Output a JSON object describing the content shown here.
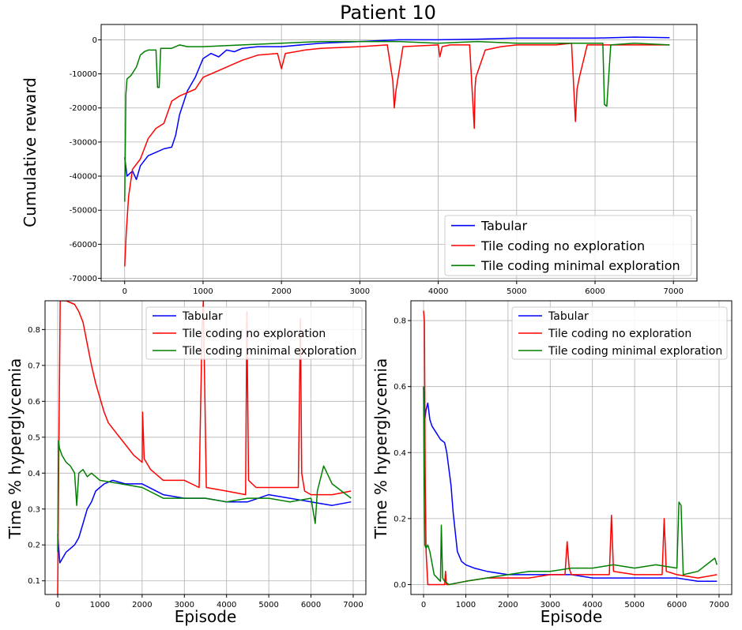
{
  "figure": {
    "title": "Patient 10",
    "colors": {
      "Tabular": "#0000ff",
      "Tile coding no exploration": "#ff0000",
      "Tile coding minimal exploration": "#008000"
    }
  },
  "chart_data": [
    {
      "type": "line",
      "title": "Patient 10",
      "xlabel": "",
      "ylabel": "Cumulative reward",
      "xlim": [
        -300,
        7300
      ],
      "ylim": [
        -70800,
        4500
      ],
      "xticks": [
        0,
        1000,
        2000,
        3000,
        4000,
        5000,
        6000,
        7000
      ],
      "yticks": [
        0,
        -10000,
        -20000,
        -30000,
        -40000,
        -50000,
        -60000,
        -70000
      ],
      "grid": true,
      "legend": "lower-right",
      "series": [
        {
          "name": "Tabular",
          "color": "#0000ff",
          "x": [
            0,
            30,
            100,
            150,
            200,
            300,
            400,
            500,
            600,
            650,
            700,
            800,
            900,
            1000,
            1100,
            1200,
            1300,
            1400,
            1500,
            1700,
            2000,
            2500,
            3000,
            3500,
            4000,
            4500,
            5000,
            5500,
            6000,
            6500,
            6950
          ],
          "y": [
            -34500,
            -40000,
            -38500,
            -41000,
            -37000,
            -34000,
            -33000,
            -32000,
            -31500,
            -28000,
            -22000,
            -15000,
            -11000,
            -5500,
            -4000,
            -5000,
            -3000,
            -3500,
            -2500,
            -2000,
            -2000,
            -1000,
            -500,
            0,
            0,
            200,
            500,
            500,
            500,
            800,
            600
          ]
        },
        {
          "name": "Tile coding no exploration",
          "color": "#ff0000",
          "x": [
            0,
            20,
            50,
            100,
            200,
            300,
            400,
            500,
            600,
            700,
            800,
            900,
            1000,
            1200,
            1500,
            1700,
            1950,
            2000,
            2050,
            2300,
            2500,
            3000,
            3350,
            3420,
            3440,
            3460,
            3550,
            4000,
            4020,
            4050,
            4150,
            4400,
            4460,
            4470,
            4480,
            4600,
            4800,
            5000,
            5500,
            5700,
            5750,
            5770,
            5800,
            5900,
            6500,
            6950
          ],
          "y": [
            -66500,
            -57000,
            -46000,
            -38000,
            -35000,
            -29000,
            -26000,
            -24500,
            -18000,
            -16500,
            -15500,
            -14500,
            -11000,
            -9000,
            -6000,
            -4500,
            -4000,
            -8500,
            -4000,
            -3000,
            -2500,
            -2000,
            -1500,
            -12000,
            -20000,
            -15000,
            -2000,
            -1500,
            -5000,
            -2000,
            -1500,
            -1500,
            -26000,
            -14000,
            -11000,
            -3000,
            -2000,
            -1500,
            -1500,
            -1000,
            -24000,
            -14500,
            -11000,
            -1500,
            -1500,
            -1500
          ]
        },
        {
          "name": "Tile coding minimal exploration",
          "color": "#008000",
          "x": [
            0,
            15,
            30,
            80,
            150,
            200,
            250,
            300,
            400,
            420,
            440,
            460,
            500,
            600,
            700,
            800,
            1000,
            1500,
            2000,
            2500,
            3000,
            3500,
            4000,
            4500,
            5000,
            5500,
            6000,
            6100,
            6120,
            6150,
            6200,
            6500,
            6950
          ],
          "y": [
            -47500,
            -16000,
            -11500,
            -10500,
            -8000,
            -4500,
            -3500,
            -3000,
            -3000,
            -14000,
            -14000,
            -2500,
            -2500,
            -2500,
            -1500,
            -2000,
            -2000,
            -1500,
            -1000,
            -500,
            -500,
            -500,
            -1000,
            -500,
            -1000,
            -1000,
            -1000,
            -1000,
            -19000,
            -19500,
            -1500,
            -1000,
            -1500
          ]
        }
      ]
    },
    {
      "type": "line",
      "title": "",
      "xlabel": "Episode",
      "ylabel": "Time % hyperglycemia",
      "xlim": [
        -300,
        7300
      ],
      "ylim": [
        0.062,
        0.88
      ],
      "xticks": [
        0,
        1000,
        2000,
        3000,
        4000,
        5000,
        6000,
        7000
      ],
      "yticks": [
        0.1,
        0.2,
        0.3,
        0.4,
        0.5,
        0.6,
        0.7,
        0.8
      ],
      "grid": true,
      "legend": "top-right",
      "series": [
        {
          "name": "Tabular",
          "color": "#0000ff",
          "x": [
            0,
            50,
            100,
            200,
            300,
            400,
            500,
            600,
            700,
            800,
            900,
            1000,
            1100,
            1300,
            1600,
            2000,
            2500,
            3000,
            3500,
            4000,
            4500,
            5000,
            5500,
            6000,
            6500,
            6950
          ],
          "y": [
            0.23,
            0.15,
            0.16,
            0.18,
            0.19,
            0.2,
            0.22,
            0.26,
            0.3,
            0.32,
            0.35,
            0.36,
            0.37,
            0.38,
            0.37,
            0.37,
            0.34,
            0.33,
            0.33,
            0.32,
            0.32,
            0.34,
            0.33,
            0.32,
            0.31,
            0.32
          ]
        },
        {
          "name": "Tile coding no exploration",
          "color": "#ff0000",
          "x": [
            0,
            30,
            60,
            100,
            200,
            400,
            500,
            600,
            700,
            800,
            900,
            1000,
            1100,
            1200,
            1400,
            1600,
            1800,
            2000,
            2010,
            2050,
            2200,
            2500,
            3000,
            3350,
            3420,
            3450,
            3520,
            4000,
            4450,
            4480,
            4520,
            4700,
            5000,
            5700,
            5750,
            5780,
            5850,
            6000,
            6500,
            6950
          ],
          "y": [
            0.06,
            0.5,
            0.88,
            0.88,
            0.88,
            0.87,
            0.85,
            0.82,
            0.76,
            0.7,
            0.65,
            0.61,
            0.57,
            0.54,
            0.51,
            0.48,
            0.45,
            0.43,
            0.57,
            0.44,
            0.41,
            0.38,
            0.38,
            0.36,
            0.8,
            0.88,
            0.36,
            0.35,
            0.34,
            0.85,
            0.38,
            0.36,
            0.36,
            0.36,
            0.83,
            0.4,
            0.35,
            0.34,
            0.34,
            0.35
          ]
        },
        {
          "name": "Tile coding minimal exploration",
          "color": "#008000",
          "x": [
            0,
            20,
            40,
            100,
            200,
            300,
            400,
            450,
            500,
            600,
            700,
            800,
            1000,
            1500,
            2000,
            2500,
            3000,
            3500,
            4000,
            4500,
            5000,
            5500,
            6000,
            6100,
            6150,
            6300,
            6500,
            6950
          ],
          "y": [
            0.18,
            0.49,
            0.47,
            0.45,
            0.43,
            0.42,
            0.4,
            0.31,
            0.4,
            0.41,
            0.39,
            0.4,
            0.38,
            0.37,
            0.36,
            0.33,
            0.33,
            0.33,
            0.32,
            0.33,
            0.33,
            0.32,
            0.33,
            0.26,
            0.35,
            0.42,
            0.37,
            0.33
          ]
        }
      ]
    },
    {
      "type": "line",
      "title": "",
      "xlabel": "Episode",
      "ylabel": "Time % hyperglycemia",
      "xlim": [
        -300,
        7300
      ],
      "ylim": [
        -0.03,
        0.86
      ],
      "xticks": [
        0,
        1000,
        2000,
        3000,
        4000,
        5000,
        6000,
        7000
      ],
      "yticks": [
        0.0,
        0.2,
        0.4,
        0.6,
        0.8
      ],
      "grid": true,
      "legend": "top-right",
      "series": [
        {
          "name": "Tabular",
          "color": "#0000ff",
          "x": [
            0,
            30,
            60,
            100,
            150,
            200,
            300,
            400,
            500,
            550,
            600,
            650,
            700,
            800,
            900,
            1000,
            1200,
            1500,
            2000,
            2500,
            3000,
            3500,
            4000,
            4500,
            5000,
            5500,
            6000,
            6500,
            6950
          ],
          "y": [
            0.6,
            0.5,
            0.53,
            0.55,
            0.5,
            0.48,
            0.46,
            0.44,
            0.43,
            0.4,
            0.35,
            0.3,
            0.22,
            0.1,
            0.07,
            0.06,
            0.05,
            0.04,
            0.03,
            0.03,
            0.03,
            0.03,
            0.02,
            0.02,
            0.02,
            0.02,
            0.02,
            0.01,
            0.01
          ]
        },
        {
          "name": "Tile coding no exploration",
          "color": "#ff0000",
          "x": [
            0,
            20,
            40,
            60,
            80,
            100,
            200,
            400,
            500,
            520,
            540,
            600,
            1000,
            1500,
            2000,
            2500,
            3000,
            3350,
            3400,
            3450,
            3500,
            4000,
            4400,
            4450,
            4500,
            5000,
            5650,
            5700,
            5750,
            6000,
            6500,
            6950
          ],
          "y": [
            0.83,
            0.8,
            0.3,
            0.1,
            0.05,
            0.0,
            0.0,
            0.0,
            0.0,
            0.04,
            0.0,
            0.0,
            0.01,
            0.02,
            0.02,
            0.02,
            0.03,
            0.03,
            0.13,
            0.05,
            0.03,
            0.03,
            0.03,
            0.21,
            0.04,
            0.03,
            0.03,
            0.2,
            0.04,
            0.03,
            0.02,
            0.03
          ]
        },
        {
          "name": "Tile coding minimal exploration",
          "color": "#008000",
          "x": [
            0,
            15,
            30,
            60,
            100,
            150,
            250,
            400,
            420,
            450,
            500,
            600,
            1000,
            1500,
            2000,
            2500,
            3000,
            3500,
            4000,
            4500,
            5000,
            5500,
            6000,
            6050,
            6100,
            6150,
            6500,
            6900,
            6950
          ],
          "y": [
            0.6,
            0.3,
            0.12,
            0.11,
            0.12,
            0.1,
            0.03,
            0.01,
            0.18,
            0.02,
            0.01,
            0.0,
            0.01,
            0.02,
            0.03,
            0.04,
            0.04,
            0.05,
            0.05,
            0.06,
            0.05,
            0.06,
            0.05,
            0.25,
            0.24,
            0.03,
            0.04,
            0.08,
            0.06
          ]
        }
      ]
    }
  ]
}
